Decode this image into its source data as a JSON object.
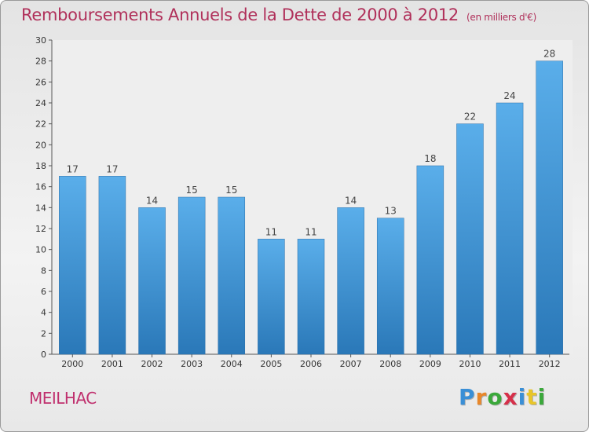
{
  "header": {
    "title": "Remboursements Annuels de la Dette de 2000 à 2012",
    "unit": "(en milliers d'€)"
  },
  "footer": {
    "commune": "MEILHAC",
    "logo": "Proxiti",
    "logo_letters": [
      "P",
      "r",
      "o",
      "x",
      "i",
      "t",
      "i"
    ],
    "logo_colors": [
      "#3a8fd6",
      "#e8872a",
      "#3aa83a",
      "#d6304a",
      "#3a8fd6",
      "#e8c52a",
      "#3aa83a"
    ]
  },
  "chart_data": {
    "type": "bar",
    "title": "Remboursements Annuels de la Dette de 2000 à 2012",
    "xlabel": "",
    "ylabel": "",
    "categories": [
      "2000",
      "2001",
      "2002",
      "2003",
      "2004",
      "2005",
      "2006",
      "2007",
      "2008",
      "2009",
      "2010",
      "2011",
      "2012"
    ],
    "values": [
      17,
      17,
      14,
      15,
      15,
      11,
      11,
      14,
      13,
      18,
      22,
      24,
      28
    ],
    "ylim": [
      0,
      30
    ],
    "yticks": [
      0,
      2,
      4,
      6,
      8,
      10,
      12,
      14,
      16,
      18,
      20,
      22,
      24,
      26,
      28,
      30
    ],
    "grid": false,
    "bar_color_top": "#5aaeea",
    "bar_color_bottom": "#2a78b8"
  }
}
